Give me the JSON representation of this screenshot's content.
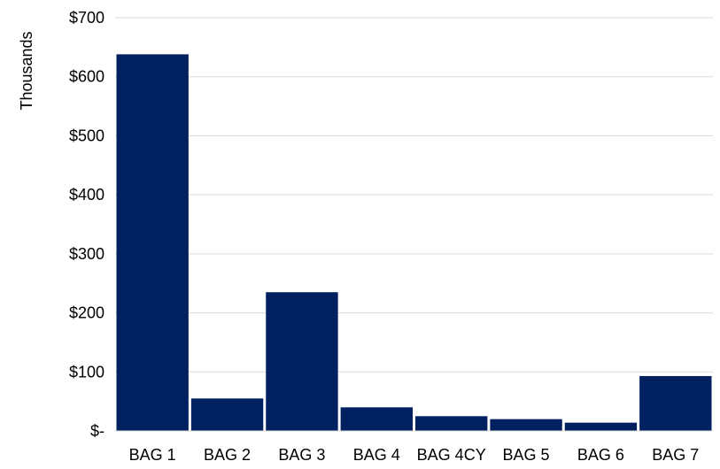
{
  "chart_data": {
    "type": "bar",
    "title": "",
    "xlabel": "",
    "ylabel": "Thousands",
    "categories": [
      "BAG 1",
      "BAG 2",
      "BAG 3",
      "BAG 4",
      "BAG 4CY",
      "BAG 5",
      "BAG 6",
      "BAG 7"
    ],
    "values": [
      638,
      55,
      235,
      40,
      25,
      20,
      14,
      93
    ],
    "ylim": [
      0,
      700
    ],
    "yticks": [
      0,
      100,
      200,
      300,
      400,
      500,
      600,
      700
    ],
    "ytick_labels": [
      "$-",
      "$100",
      "$200",
      "$300",
      "$400",
      "$500",
      "$600",
      "$700"
    ],
    "grid": true,
    "legend": "none",
    "bar_color": "#002060"
  }
}
